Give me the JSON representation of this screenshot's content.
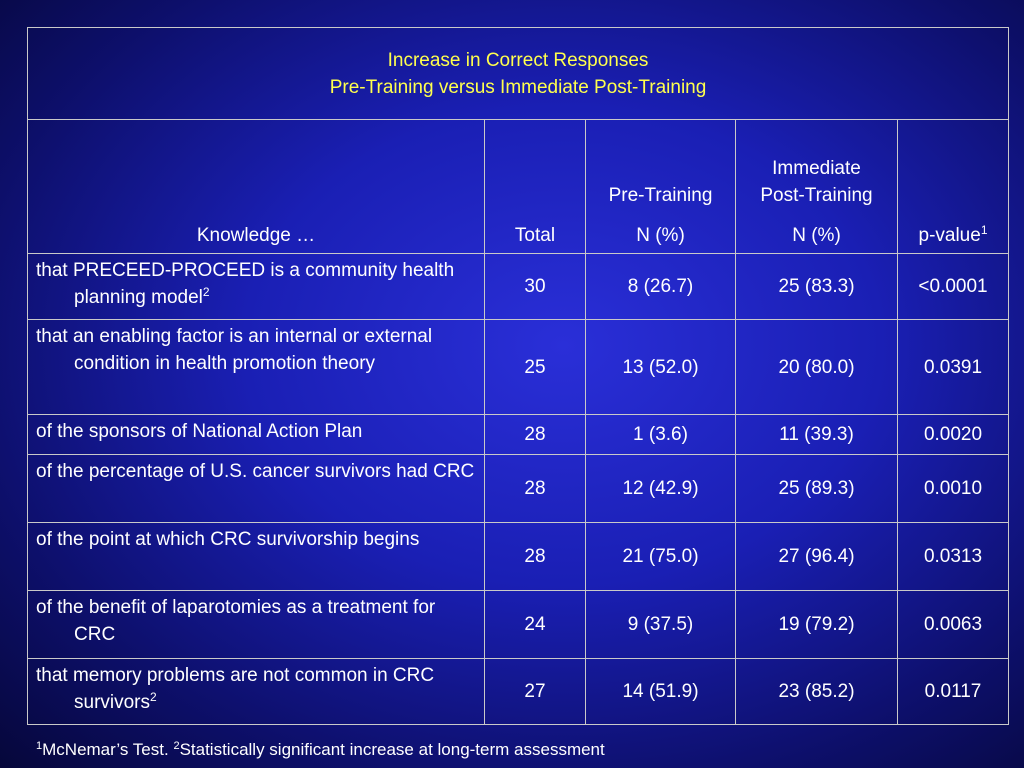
{
  "title": {
    "line1": "Increase in Correct Responses",
    "line2": "Pre-Training versus Immediate Post-Training"
  },
  "headers": {
    "knowledge": "Knowledge …",
    "total": "Total",
    "pre_top": "Pre-Training",
    "pre_sub": "N (%)",
    "post_top_line1": "Immediate",
    "post_top_line2": "Post-Training",
    "post_sub": "N (%)",
    "pvalue": "p-value",
    "pvalue_sup": "1"
  },
  "rows": [
    {
      "desc": "that PRECEED-PROCEED is a community health planning model",
      "sup": "2",
      "total": "30",
      "pre": "8 (26.7)",
      "post": "25 (83.3)",
      "p": "<0.0001"
    },
    {
      "desc": "that an enabling factor is an internal or external condition in health promotion theory",
      "sup": "",
      "total": "25",
      "pre": "13 (52.0)",
      "post": "20 (80.0)",
      "p": "0.0391"
    },
    {
      "desc": "of the sponsors of National Action Plan",
      "sup": "",
      "total": "28",
      "pre": "1 (3.6)",
      "post": "11 (39.3)",
      "p": "0.0020"
    },
    {
      "desc": "of the percentage of U.S. cancer survivors had CRC",
      "sup": "",
      "total": "28",
      "pre": "12 (42.9)",
      "post": "25 (89.3)",
      "p": "0.0010"
    },
    {
      "desc": "of the point at which CRC survivorship begins",
      "sup": "",
      "total": "28",
      "pre": "21 (75.0)",
      "post": "27 (96.4)",
      "p": "0.0313"
    },
    {
      "desc": "of the benefit of laparotomies as a treatment for CRC",
      "sup": "",
      "total": "24",
      "pre": "9 (37.5)",
      "post": "19 (79.2)",
      "p": "0.0063"
    },
    {
      "desc": "that memory problems are not common in CRC survivors",
      "sup": "2",
      "total": "27",
      "pre": "14 (51.9)",
      "post": "23 (85.2)",
      "p": "0.0117"
    }
  ],
  "footnote": {
    "sup1": "1",
    "text1": "McNemar’s Test. ",
    "sup2": "2",
    "text2": "Statistically significant increase at long-term assessment"
  },
  "colors": {
    "title": "#ffff4d",
    "text": "#ffffff",
    "border": "#c9c9c9",
    "background": "#1a1fb4"
  }
}
